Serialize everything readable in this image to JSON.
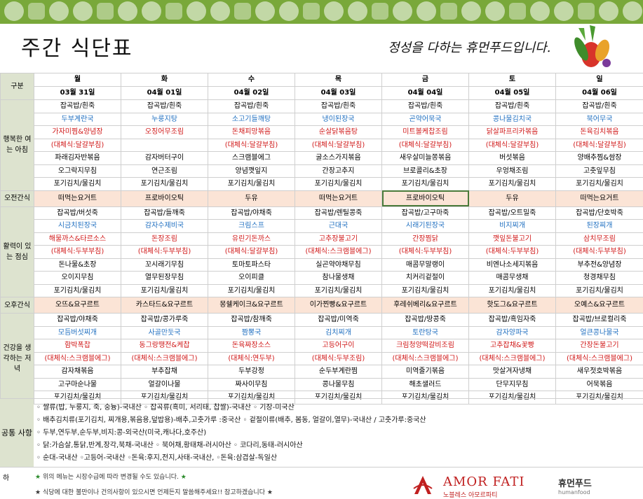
{
  "header": {
    "title": "주간 식단표",
    "slogan": "정성을 다하는 휴먼푸드입니다."
  },
  "table": {
    "corner_label": "구분",
    "days": [
      {
        "day": "월",
        "date": "03월 31일"
      },
      {
        "day": "화",
        "date": "04월 01일"
      },
      {
        "day": "수",
        "date": "04월 02일"
      },
      {
        "day": "목",
        "date": "04월 03일"
      },
      {
        "day": "금",
        "date": "04월 04일"
      },
      {
        "day": "토",
        "date": "04월 05일"
      },
      {
        "day": "일",
        "date": "04월 06일"
      }
    ],
    "sections": [
      {
        "type": "meal",
        "label": "행복한 여는 아침",
        "rows": [
          {
            "color": "black",
            "cells": [
              "잡곡밥/흰죽",
              "잡곡밥/흰죽",
              "잡곡밥/흰죽",
              "잡곡밥/흰죽",
              "잡곡밥/흰죽",
              "잡곡밥/흰죽",
              "잡곡밥/흰죽"
            ]
          },
          {
            "color": "blue",
            "cells": [
              "두부계란국",
              "누룽지탕",
              "소고기들깨탕",
              "냉이된장국",
              "곤약어묵국",
              "콩나물김치국",
              "북어무국"
            ]
          },
          {
            "color": "red",
            "cells": [
              "가자미찜&양념장",
              "오징어무조림",
              "돈채피망볶음",
              "순살닭볶음탕",
              "미트볼케찹조림",
              "닭살파프리카볶음",
              "돈육김치볶음"
            ]
          },
          {
            "color": "red",
            "cells": [
              "(대체식:달걀부침)",
              "",
              "(대체식:달걀부침)",
              "(대체식:달걀부침)",
              "(대체식:달걀부침)",
              "(대체식:달걀부침)",
              "(대체식:달걀부침)"
            ]
          },
          {
            "color": "black",
            "cells": [
              "파래김자반볶음",
              "감자버터구이",
              "스크램블에그",
              "굴소스가지볶음",
              "새우살미늘쫑볶음",
              "버섯볶음",
              "양배추찜&쌈장"
            ]
          },
          {
            "color": "black",
            "cells": [
              "오그락지무침",
              "연근조림",
              "양념깻잎지",
              "간장고추지",
              "브로콜리&초장",
              "우엉채조림",
              "고춧잎무침"
            ]
          },
          {
            "color": "black",
            "cells": [
              "포기김치/물김치",
              "포기김치/물김치",
              "포기김치/물김치",
              "포기김치/물김치",
              "포기김치/물김치",
              "포기김치/물김치",
              "포기김치/물김치"
            ]
          }
        ]
      },
      {
        "type": "snack",
        "label": "오전간식",
        "cells": [
          "떠먹는요거트",
          "프로바이오틱",
          "두유",
          "떠먹는요거트",
          "프로바이오틱",
          "두유",
          "떠먹는요거트"
        ],
        "highlight_index": 4
      },
      {
        "type": "meal",
        "label": "활력이 있는 점심",
        "rows": [
          {
            "color": "black",
            "cells": [
              "잡곡밥/버섯죽",
              "잡곡밥/들깨죽",
              "잡곡밥/야채죽",
              "잡곡밥/렌틸콩죽",
              "잡곡밥/고구마죽",
              "잡곡밥/오트밀죽",
              "잡곡밥/단호박죽"
            ]
          },
          {
            "color": "blue",
            "cells": [
              "시금치된장국",
              "감자수제비국",
              "크림스프",
              "근대국",
              "시래기된장국",
              "비지찌개",
              "된장찌개"
            ]
          },
          {
            "color": "red",
            "cells": [
              "해물까스&타르소스",
              "돈장조림",
              "유린기돈까스",
              "고추장불고기",
              "간장찜닭",
              "깻잎돈불고기",
              "삼치무조림"
            ]
          },
          {
            "color": "red",
            "cells": [
              "(대체식:두부부침)",
              "(대체식:두부부침)",
              "(대체식:달걀부침)",
              "(대체식:스크램블에그)",
              "(대체식:두부부침)",
              "(대체식:두부부침)",
              "(대체식:두부부침)"
            ]
          },
          {
            "color": "black",
            "cells": [
              "돈나물&초장",
              "꼬시래기무침",
              "토마토파스타",
              "실곤약야채무침",
              "매콤무말랭이",
              "비엔나소세지볶음",
              "부추전&양념장"
            ]
          },
          {
            "color": "black",
            "cells": [
              "오이지무침",
              "열무된장무침",
              "오이피클",
              "참나물생채",
              "치커리겉절이",
              "매콤무생채",
              "청경채무침"
            ]
          },
          {
            "color": "black",
            "cells": [
              "포기김치/물김치",
              "포기김치/물김치",
              "포기김치/물김치",
              "포기김치/물김치",
              "포기김치/물김치",
              "포기김치/물김치",
              "포기김치/물김치"
            ]
          }
        ]
      },
      {
        "type": "snack",
        "label": "오후간식",
        "cells": [
          "오뜨&요구르트",
          "카스타드&요구르트",
          "몽쉘케이크&요구르트",
          "이가찐빵&요구르트",
          "후레쉬베리&요구르트",
          "핫도그&요구르트",
          "오예스&요구르트"
        ],
        "highlight_index": -1
      },
      {
        "type": "meal",
        "label": "건강을 생각하는 저녁",
        "rows": [
          {
            "color": "black",
            "cells": [
              "잡곡밥/야채죽",
              "잡곡밥/콩가루죽",
              "잡곡밥/참깨죽",
              "잡곡밥/미역죽",
              "잡곡밥/땅콩죽",
              "잡곡밥/흑임자죽",
              "잡곡밥/브로컬리죽"
            ]
          },
          {
            "color": "blue",
            "cells": [
              "모듬버섯찌개",
              "사골만둣국",
              "짬뽕국",
              "김치찌개",
              "토란탕국",
              "감자양파국",
              "얼큰콩나물국"
            ]
          },
          {
            "color": "red",
            "cells": [
              "함박폭찹",
              "동그랑땡전&케찹",
              "돈육짜장소스",
              "고등어구이",
              "크림청양떡갈비조림",
              "고추잡채&꽃빵",
              "간장돈불고기"
            ]
          },
          {
            "color": "red",
            "cells": [
              "(대체식:스크램블에그)",
              "(대체식:스크램블에그)",
              "(대체식:연두부)",
              "(대체식:두부조림)",
              "(대체식:스크램블에그)",
              "(대체식:스크램블에그)",
              "(대체식:스크램블에그)"
            ]
          },
          {
            "color": "black",
            "cells": [
              "감자채볶음",
              "부추잡채",
              "두부강정",
              "순두부계란찜",
              "미역줄기볶음",
              "맛살겨자냉채",
              "새우젓호박볶음"
            ]
          },
          {
            "color": "black",
            "cells": [
              "고구마순나물",
              "얼갈이나물",
              "짜사이무침",
              "콩나물무침",
              "해초샐러드",
              "단무지무침",
              "어묵볶음"
            ]
          },
          {
            "color": "black",
            "cells": [
              "포기김치/물김치",
              "포기김치/물김치",
              "포기김치/물김치",
              "포기김치/물김치",
              "포기김치/물김치",
              "포기김치/물김치",
              "포기김치/물김치"
            ]
          }
        ]
      }
    ]
  },
  "notes": {
    "label": "공통 사항",
    "lines": [
      "◦ 쌀류(밥, 누룽지, 죽, 숭늉)-국내산 ◦ 잡곡류(흑미, 서리태, 찹쌀)-국내산 ◦ 기장-미국산",
      "◦ 배추김치류(포기김치, 찌개용,볶음용,덮밥용)-배추,고춧가루 :중국산 ◦ 겉절이류(배추, 봄동, 얼갈이,열무)-국내산 / 고춧가루:중국산",
      "◦ 두부,연두부,순두부,비지:콩-외국산(미국,캐나다,호주산)",
      "◦ 닭:가슴살,통닭,반계,장각,북채-국내산 ◦ 북어채,황태채-러시아산 ◦ 코다리,동태-러시아산",
      "◦ 순대-국내산 ◦고등어-국내산 ◦돈육:후지,전지,사태-국내산, ◦돈육:삼겹살-독일산"
    ]
  },
  "footer": {
    "label": "하",
    "line1": "위의 메뉴는 시장수급에 따라 변경될 수도 있습니다.",
    "line2": "식당에 대한 불만이나 건의사항이 있으시면 언제든지 말씀해주세요!! 참고하겠습니다",
    "star": "★"
  },
  "logos": {
    "amor_name": "AMOR FATI",
    "amor_sub": "노블레스 아모르파티",
    "hf_name": "휴먼푸드",
    "hf_sub": "humanfood"
  },
  "colors": {
    "blue": "#1f6fc0",
    "red": "#d01818",
    "label_bg": "#dde3cf",
    "snack_bg": "#fbe4d6",
    "banner": "#79a83a"
  }
}
